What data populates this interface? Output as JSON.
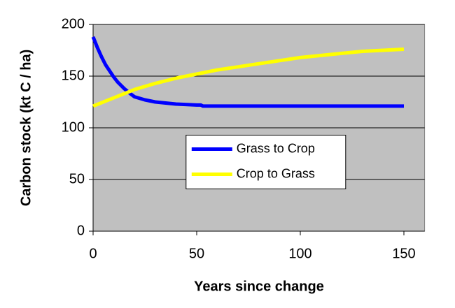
{
  "chart_data": {
    "type": "line",
    "x_label": "Years since change",
    "y_label": "Carbon stock (kt C / ha)",
    "xlim": [
      0,
      160
    ],
    "xticks": [
      0,
      50,
      100,
      150
    ],
    "ylim": [
      0,
      200
    ],
    "yticks": [
      0,
      50,
      100,
      150,
      200
    ],
    "grid": true,
    "plot_background": "#c0c0c0",
    "legend_position": "center",
    "series": [
      {
        "name": "Grass to Crop",
        "color": "#0000ff",
        "x": [
          0,
          2,
          4,
          6,
          8,
          10,
          12,
          15,
          18,
          20,
          25,
          30,
          35,
          40,
          50,
          52,
          53,
          60,
          80,
          100,
          120,
          150
        ],
        "values": [
          188,
          178,
          169,
          161,
          155,
          149,
          144,
          138,
          133,
          130,
          127,
          125,
          124,
          123,
          122,
          122,
          121,
          121,
          121,
          121,
          121,
          121
        ]
      },
      {
        "name": "Crop to Grass",
        "color": "#ffff00",
        "x": [
          0,
          10,
          20,
          30,
          40,
          50,
          60,
          70,
          80,
          90,
          100,
          110,
          120,
          130,
          140,
          150
        ],
        "values": [
          121,
          129,
          137,
          143,
          148,
          152,
          156,
          159,
          162,
          165,
          168,
          170,
          172,
          174,
          175,
          176
        ]
      }
    ]
  }
}
